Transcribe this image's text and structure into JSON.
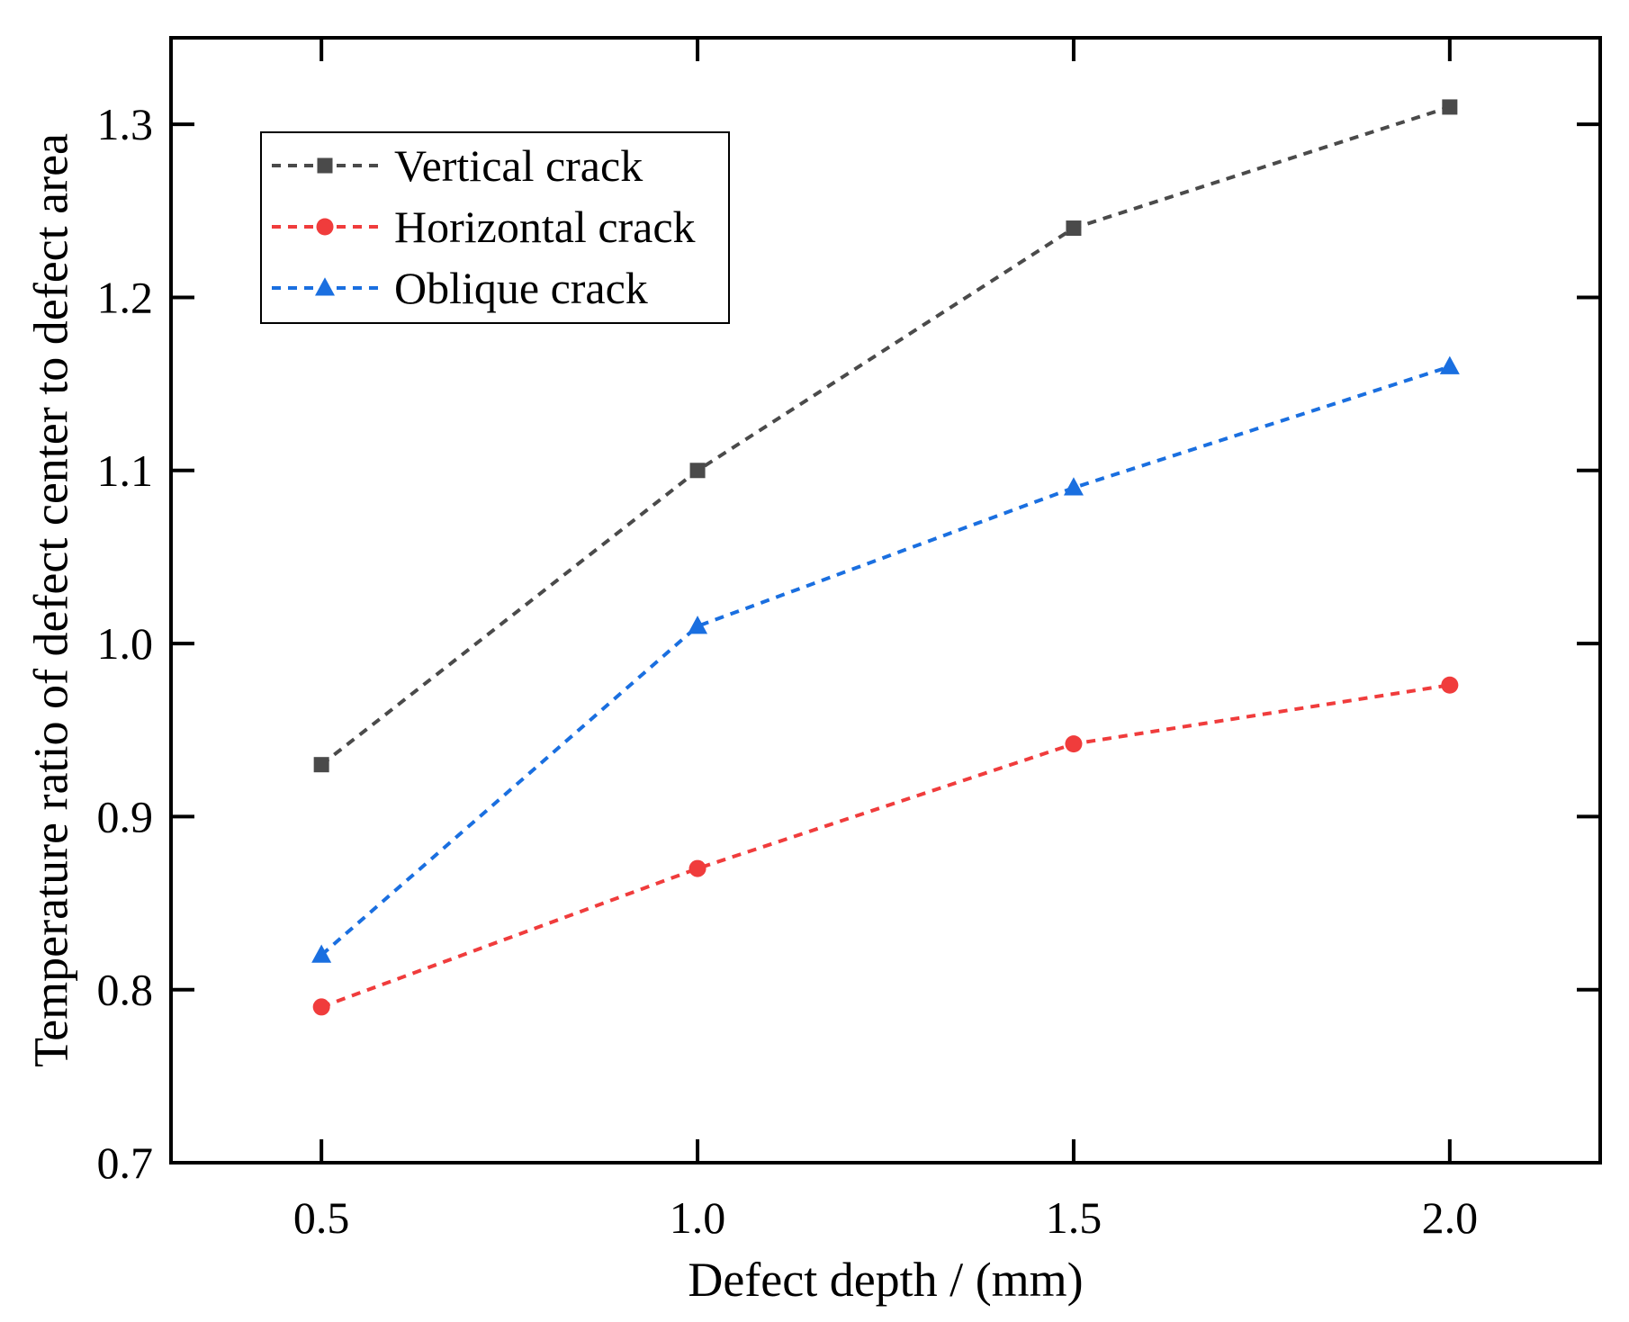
{
  "chart_data": {
    "type": "line",
    "title": "",
    "xlabel": "Defect depth / (mm)",
    "ylabel": "Temperature ratio of defect center to defect area",
    "x": [
      0.5,
      1.0,
      1.5,
      2.0
    ],
    "x_tick_labels": [
      "0.5",
      "1.0",
      "1.5",
      "2.0"
    ],
    "y_tick_labels": [
      "0.7",
      "0.8",
      "0.9",
      "1.0",
      "1.1",
      "1.2",
      "1.3"
    ],
    "y_ticks": [
      0.7,
      0.8,
      0.9,
      1.0,
      1.1,
      1.2,
      1.3
    ],
    "xlim": [
      0.3,
      2.2
    ],
    "ylim": [
      0.7,
      1.35
    ],
    "grid": false,
    "legend_position": "top-left",
    "series": [
      {
        "name": "Vertical crack",
        "values": [
          0.93,
          1.1,
          1.24,
          1.31
        ],
        "color": "#4a4a4a",
        "marker": "square"
      },
      {
        "name": "Horizontal crack",
        "values": [
          0.79,
          0.87,
          0.942,
          0.976
        ],
        "color": "#f03c3c",
        "marker": "circle"
      },
      {
        "name": "Oblique crack",
        "values": [
          0.82,
          1.01,
          1.09,
          1.16
        ],
        "color": "#1a6fe0",
        "marker": "triangle"
      }
    ]
  }
}
